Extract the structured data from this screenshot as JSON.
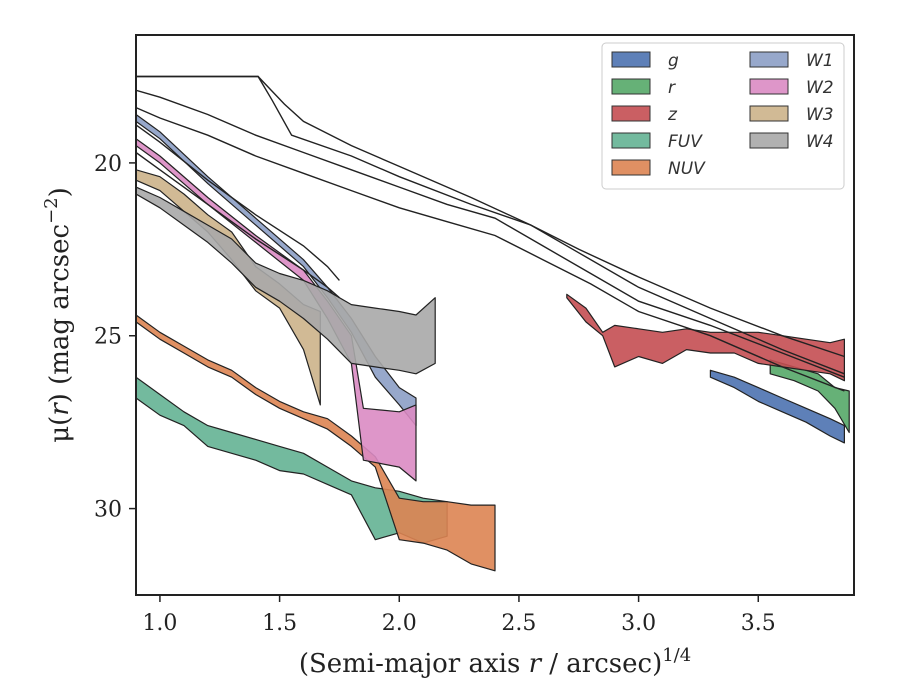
{
  "chart_data": {
    "type": "area",
    "xlabel": "(Semi-major axis",
    "xlabel_var": "r",
    "xlabel_unit": "/ arcsec)",
    "xlabel_exp": "1/4",
    "ylabel_mu": "μ(",
    "ylabel_var": "r",
    "ylabel_unit": ") (mag arcsec",
    "ylabel_exp": "−2",
    "ylabel_close": ")",
    "xlim": [
      0.9,
      3.9
    ],
    "ylim": [
      32.5,
      16.3
    ],
    "y_inverted": true,
    "x_ticks": [
      1.0,
      1.5,
      2.0,
      2.5,
      3.0,
      3.5
    ],
    "x_tick_labels": [
      "1.0",
      "1.5",
      "2.0",
      "2.5",
      "3.0",
      "3.5"
    ],
    "y_ticks": [
      20,
      25,
      30
    ],
    "y_tick_labels": [
      "20",
      "25",
      "30"
    ],
    "grid": false,
    "legend_position": "top-right",
    "legend_columns": 2,
    "series": [
      {
        "name": "g",
        "color": "#4c72b0",
        "upper": [
          [
            3.3,
            26.2
          ],
          [
            3.4,
            26.5
          ],
          [
            3.5,
            26.9
          ],
          [
            3.6,
            27.2
          ],
          [
            3.7,
            27.5
          ],
          [
            3.8,
            27.9
          ],
          [
            3.86,
            28.1
          ]
        ],
        "lower": [
          [
            3.3,
            26.0
          ],
          [
            3.4,
            26.2
          ],
          [
            3.5,
            26.5
          ],
          [
            3.6,
            26.8
          ],
          [
            3.7,
            27.1
          ],
          [
            3.8,
            27.4
          ],
          [
            3.86,
            27.6
          ]
        ]
      },
      {
        "name": "r",
        "color": "#55a868",
        "upper": [
          [
            3.55,
            26.1
          ],
          [
            3.65,
            26.3
          ],
          [
            3.75,
            26.6
          ],
          [
            3.82,
            27.1
          ],
          [
            3.88,
            27.8
          ]
        ],
        "lower": [
          [
            3.55,
            25.7
          ],
          [
            3.65,
            25.9
          ],
          [
            3.75,
            26.1
          ],
          [
            3.82,
            26.5
          ],
          [
            3.88,
            26.6
          ]
        ]
      },
      {
        "name": "z",
        "color": "#c44e52",
        "upper": [
          [
            2.7,
            23.9
          ],
          [
            2.78,
            24.6
          ],
          [
            2.85,
            25.0
          ],
          [
            2.9,
            25.9
          ],
          [
            3.0,
            25.6
          ],
          [
            3.1,
            25.8
          ],
          [
            3.2,
            25.4
          ],
          [
            3.3,
            25.5
          ],
          [
            3.4,
            25.5
          ],
          [
            3.5,
            25.8
          ],
          [
            3.6,
            25.9
          ],
          [
            3.7,
            26.0
          ],
          [
            3.8,
            26.1
          ],
          [
            3.86,
            26.3
          ]
        ],
        "lower": [
          [
            2.7,
            23.8
          ],
          [
            2.78,
            24.2
          ],
          [
            2.85,
            24.9
          ],
          [
            2.9,
            24.7
          ],
          [
            3.0,
            24.8
          ],
          [
            3.1,
            24.9
          ],
          [
            3.2,
            24.8
          ],
          [
            3.3,
            24.9
          ],
          [
            3.4,
            24.9
          ],
          [
            3.5,
            24.9
          ],
          [
            3.6,
            25.0
          ],
          [
            3.7,
            25.1
          ],
          [
            3.8,
            25.2
          ],
          [
            3.86,
            25.1
          ]
        ]
      },
      {
        "name": "FUV",
        "color": "#64b294",
        "upper": [
          [
            0.9,
            26.8
          ],
          [
            1.0,
            27.3
          ],
          [
            1.1,
            27.6
          ],
          [
            1.2,
            28.2
          ],
          [
            1.3,
            28.4
          ],
          [
            1.4,
            28.6
          ],
          [
            1.5,
            28.9
          ],
          [
            1.6,
            29.0
          ],
          [
            1.7,
            29.3
          ],
          [
            1.8,
            29.6
          ],
          [
            1.9,
            30.9
          ],
          [
            2.0,
            30.7
          ],
          [
            2.1,
            31.0
          ],
          [
            2.2,
            30.8
          ]
        ],
        "lower": [
          [
            0.9,
            26.2
          ],
          [
            1.0,
            26.7
          ],
          [
            1.1,
            27.2
          ],
          [
            1.2,
            27.6
          ],
          [
            1.3,
            27.8
          ],
          [
            1.4,
            28.0
          ],
          [
            1.5,
            28.2
          ],
          [
            1.6,
            28.4
          ],
          [
            1.7,
            28.8
          ],
          [
            1.8,
            29.2
          ],
          [
            1.9,
            29.4
          ],
          [
            2.0,
            29.5
          ],
          [
            2.1,
            29.7
          ],
          [
            2.2,
            29.8
          ]
        ]
      },
      {
        "name": "NUV",
        "color": "#dd8452",
        "upper": [
          [
            0.9,
            24.6
          ],
          [
            1.0,
            25.1
          ],
          [
            1.1,
            25.5
          ],
          [
            1.2,
            25.9
          ],
          [
            1.3,
            26.2
          ],
          [
            1.4,
            26.7
          ],
          [
            1.5,
            27.1
          ],
          [
            1.6,
            27.4
          ],
          [
            1.7,
            27.7
          ],
          [
            1.8,
            28.2
          ],
          [
            1.9,
            28.8
          ],
          [
            2.0,
            30.9
          ],
          [
            2.1,
            31.0
          ],
          [
            2.2,
            31.2
          ],
          [
            2.3,
            31.6
          ],
          [
            2.4,
            31.8
          ]
        ],
        "lower": [
          [
            0.9,
            24.4
          ],
          [
            1.0,
            24.9
          ],
          [
            1.1,
            25.3
          ],
          [
            1.2,
            25.7
          ],
          [
            1.3,
            26.0
          ],
          [
            1.4,
            26.5
          ],
          [
            1.5,
            26.9
          ],
          [
            1.6,
            27.2
          ],
          [
            1.7,
            27.4
          ],
          [
            1.8,
            27.9
          ],
          [
            1.9,
            28.5
          ],
          [
            2.0,
            29.7
          ],
          [
            2.1,
            29.8
          ],
          [
            2.2,
            29.8
          ],
          [
            2.3,
            29.9
          ],
          [
            2.4,
            29.9
          ]
        ]
      },
      {
        "name": "W1",
        "color": "#8c9ec5",
        "upper": [
          [
            0.9,
            18.8
          ],
          [
            1.0,
            19.3
          ],
          [
            1.2,
            20.6
          ],
          [
            1.4,
            21.8
          ],
          [
            1.6,
            23.0
          ],
          [
            1.7,
            23.9
          ],
          [
            1.8,
            24.9
          ],
          [
            1.9,
            26.2
          ],
          [
            2.0,
            27.0
          ],
          [
            2.07,
            27.6
          ]
        ],
        "lower": [
          [
            0.9,
            18.6
          ],
          [
            1.0,
            19.1
          ],
          [
            1.2,
            20.4
          ],
          [
            1.4,
            21.6
          ],
          [
            1.6,
            22.8
          ],
          [
            1.7,
            23.6
          ],
          [
            1.8,
            24.5
          ],
          [
            1.9,
            25.6
          ],
          [
            2.0,
            26.5
          ],
          [
            2.07,
            26.8
          ]
        ]
      },
      {
        "name": "W2",
        "color": "#da8bc3",
        "upper": [
          [
            0.9,
            19.5
          ],
          [
            1.0,
            20.0
          ],
          [
            1.2,
            21.2
          ],
          [
            1.4,
            22.3
          ],
          [
            1.6,
            23.4
          ],
          [
            1.7,
            24.5
          ],
          [
            1.8,
            25.8
          ],
          [
            1.85,
            28.6
          ],
          [
            2.0,
            28.8
          ],
          [
            2.07,
            29.2
          ]
        ],
        "lower": [
          [
            0.9,
            19.3
          ],
          [
            1.0,
            19.8
          ],
          [
            1.2,
            21.0
          ],
          [
            1.4,
            22.1
          ],
          [
            1.6,
            23.1
          ],
          [
            1.7,
            24.0
          ],
          [
            1.8,
            25.0
          ],
          [
            1.85,
            27.1
          ],
          [
            2.0,
            27.2
          ],
          [
            2.07,
            27.0
          ]
        ]
      },
      {
        "name": "W3",
        "color": "#ccb38a",
        "upper": [
          [
            0.9,
            20.5
          ],
          [
            1.0,
            20.8
          ],
          [
            1.1,
            21.4
          ],
          [
            1.2,
            22.0
          ],
          [
            1.3,
            22.8
          ],
          [
            1.4,
            23.7
          ],
          [
            1.5,
            24.2
          ],
          [
            1.6,
            25.4
          ],
          [
            1.67,
            27.0
          ]
        ],
        "lower": [
          [
            0.9,
            20.2
          ],
          [
            1.0,
            20.4
          ],
          [
            1.1,
            20.9
          ],
          [
            1.2,
            21.5
          ],
          [
            1.3,
            22.0
          ],
          [
            1.4,
            23.0
          ],
          [
            1.5,
            23.5
          ],
          [
            1.6,
            24.1
          ],
          [
            1.67,
            24.3
          ]
        ]
      },
      {
        "name": "W4",
        "color": "#a8a8a8",
        "upper": [
          [
            0.9,
            20.9
          ],
          [
            1.0,
            21.3
          ],
          [
            1.1,
            21.8
          ],
          [
            1.2,
            22.3
          ],
          [
            1.3,
            22.9
          ],
          [
            1.4,
            23.6
          ],
          [
            1.5,
            24.0
          ],
          [
            1.6,
            24.5
          ],
          [
            1.7,
            25.1
          ],
          [
            1.8,
            25.8
          ],
          [
            1.9,
            25.9
          ],
          [
            2.0,
            26.0
          ],
          [
            2.07,
            26.1
          ],
          [
            2.15,
            25.8
          ]
        ],
        "lower": [
          [
            0.9,
            20.7
          ],
          [
            1.0,
            21.0
          ],
          [
            1.1,
            21.4
          ],
          [
            1.2,
            21.8
          ],
          [
            1.3,
            22.2
          ],
          [
            1.4,
            22.9
          ],
          [
            1.5,
            23.2
          ],
          [
            1.6,
            23.4
          ],
          [
            1.7,
            23.7
          ],
          [
            1.8,
            24.1
          ],
          [
            1.9,
            24.2
          ],
          [
            2.0,
            24.3
          ],
          [
            2.07,
            24.4
          ],
          [
            2.15,
            23.9
          ]
        ]
      }
    ],
    "profile_lines": [
      [
        [
          0.9,
          17.5
        ],
        [
          1.41,
          17.5
        ],
        [
          1.47,
          18.2
        ],
        [
          1.55,
          19.2
        ],
        [
          1.8,
          19.8
        ],
        [
          2.0,
          20.4
        ],
        [
          2.3,
          21.2
        ],
        [
          2.55,
          21.8
        ],
        [
          2.75,
          22.5
        ],
        [
          3.0,
          23.3
        ],
        [
          3.3,
          24.2
        ],
        [
          3.6,
          25.0
        ],
        [
          3.86,
          25.6
        ]
      ],
      [
        [
          0.9,
          17.5
        ],
        [
          1.41,
          17.5
        ],
        [
          1.52,
          18.3
        ],
        [
          1.6,
          18.8
        ],
        [
          1.8,
          19.5
        ],
        [
          2.0,
          20.1
        ],
        [
          2.3,
          21.0
        ],
        [
          2.55,
          21.8
        ],
        [
          2.75,
          22.6
        ],
        [
          3.0,
          23.6
        ],
        [
          3.3,
          24.5
        ],
        [
          3.6,
          25.4
        ],
        [
          3.86,
          26.1
        ]
      ],
      [
        [
          0.9,
          17.9
        ],
        [
          1.0,
          18.1
        ],
        [
          1.2,
          18.6
        ],
        [
          1.4,
          19.2
        ],
        [
          1.6,
          19.7
        ],
        [
          1.8,
          20.2
        ],
        [
          2.0,
          20.7
        ],
        [
          2.2,
          21.2
        ],
        [
          2.4,
          21.6
        ],
        [
          2.6,
          22.4
        ],
        [
          2.8,
          23.2
        ],
        [
          3.0,
          24.0
        ],
        [
          3.3,
          24.7
        ],
        [
          3.6,
          25.5
        ],
        [
          3.86,
          26.2
        ]
      ],
      [
        [
          0.9,
          18.4
        ],
        [
          1.0,
          18.7
        ],
        [
          1.2,
          19.2
        ],
        [
          1.4,
          19.8
        ],
        [
          1.6,
          20.3
        ],
        [
          1.8,
          20.8
        ],
        [
          2.0,
          21.3
        ],
        [
          2.2,
          21.7
        ],
        [
          2.4,
          22.1
        ],
        [
          2.6,
          22.8
        ],
        [
          2.8,
          23.5
        ],
        [
          3.0,
          24.3
        ],
        [
          3.3,
          25.0
        ],
        [
          3.6,
          25.9
        ],
        [
          3.86,
          26.6
        ]
      ],
      [
        [
          0.9,
          18.9
        ],
        [
          1.0,
          19.4
        ],
        [
          1.2,
          20.5
        ],
        [
          1.4,
          21.5
        ],
        [
          1.6,
          22.4
        ],
        [
          1.7,
          23.0
        ],
        [
          1.75,
          23.4
        ]
      ],
      [
        [
          0.9,
          19.7
        ],
        [
          1.0,
          20.2
        ],
        [
          1.2,
          21.2
        ],
        [
          1.4,
          22.2
        ],
        [
          1.6,
          23.1
        ],
        [
          1.7,
          23.6
        ],
        [
          1.75,
          23.9
        ]
      ]
    ]
  }
}
